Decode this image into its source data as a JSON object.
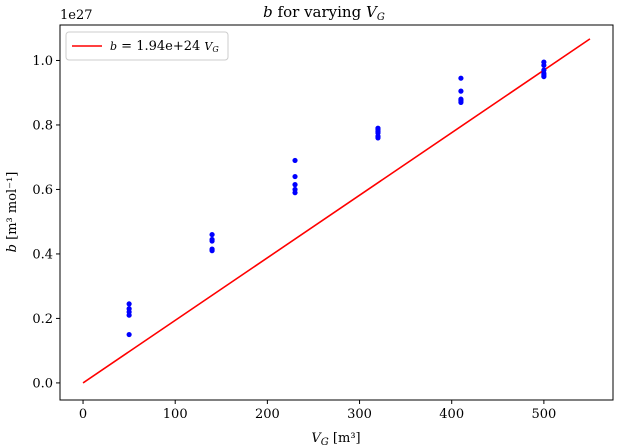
{
  "chart_data": {
    "type": "scatter",
    "title_prefix": "b",
    "title_middle": " for varying ",
    "title_var": "V",
    "title_sub": "G",
    "xlabel_var": "V",
    "xlabel_sub": "G",
    "xlabel_unit": " [m³]",
    "ylabel_var": "b",
    "ylabel_unit": " [m³ mol⁻¹]",
    "y_offset_label": "1e27",
    "xlim": [
      -25,
      575
    ],
    "ylim": [
      -0.053,
      1.11
    ],
    "x_ticks": [
      0,
      100,
      200,
      300,
      400,
      500
    ],
    "x_tick_labels": [
      "0",
      "100",
      "200",
      "300",
      "400",
      "500"
    ],
    "y_ticks": [
      0.0,
      0.2,
      0.4,
      0.6,
      0.8,
      1.0
    ],
    "y_tick_labels": [
      "0.0",
      "0.2",
      "0.4",
      "0.6",
      "0.8",
      "1.0"
    ],
    "legend": {
      "placement": "top-left",
      "label_var": "b",
      "label_text": " = 1.94e+24 ",
      "label_var2": "V",
      "label_sub2": "G"
    },
    "series": [
      {
        "kind": "points",
        "color": "#0000ff",
        "x": [
          50,
          50,
          50,
          50,
          50,
          140,
          140,
          140,
          140,
          140,
          230,
          230,
          230,
          230,
          230,
          320,
          320,
          320,
          320,
          320,
          320,
          410,
          410,
          410,
          410,
          410,
          500,
          500,
          500,
          500,
          500,
          500
        ],
        "y": [
          0.15,
          0.21,
          0.22,
          0.23,
          0.245,
          0.41,
          0.415,
          0.44,
          0.445,
          0.46,
          0.59,
          0.6,
          0.615,
          0.64,
          0.69,
          0.76,
          0.765,
          0.775,
          0.78,
          0.785,
          0.79,
          0.87,
          0.875,
          0.88,
          0.905,
          0.945,
          0.95,
          0.955,
          0.96,
          0.97,
          0.985,
          0.995
        ]
      },
      {
        "kind": "line",
        "color": "#ff0000",
        "x": [
          0,
          550
        ],
        "y": [
          0.0,
          1.067
        ]
      }
    ]
  }
}
